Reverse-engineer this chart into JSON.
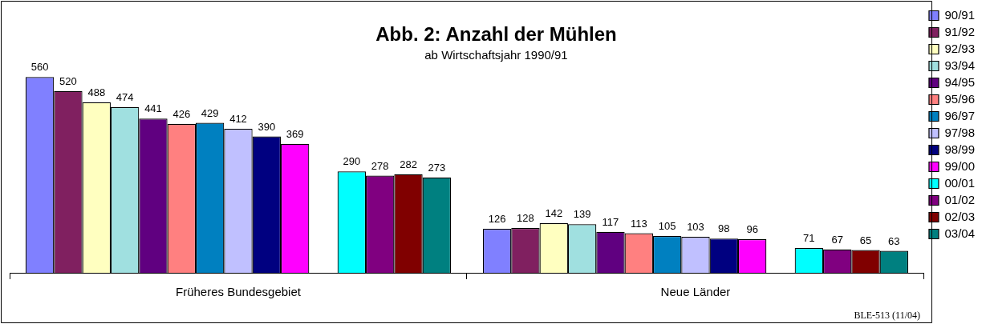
{
  "chart_data": {
    "type": "bar",
    "title": "Abb. 2: Anzahl der Mühlen",
    "subtitle": "ab Wirtschaftsjahr 1990/91",
    "categories": [
      "Früheres Bundesgebiet",
      "Neue Länder"
    ],
    "series": [
      {
        "name": "90/91",
        "color": "#8080ff",
        "values": [
          560,
          126
        ]
      },
      {
        "name": "91/92",
        "color": "#802060",
        "values": [
          520,
          128
        ]
      },
      {
        "name": "92/93",
        "color": "#ffffc0",
        "values": [
          488,
          142
        ]
      },
      {
        "name": "93/94",
        "color": "#a0e0e0",
        "values": [
          474,
          139
        ]
      },
      {
        "name": "94/95",
        "color": "#600080",
        "values": [
          441,
          117
        ]
      },
      {
        "name": "95/96",
        "color": "#ff8080",
        "values": [
          426,
          113
        ]
      },
      {
        "name": "96/97",
        "color": "#0080c0",
        "values": [
          429,
          105
        ]
      },
      {
        "name": "97/98",
        "color": "#c0c0ff",
        "values": [
          412,
          103
        ]
      },
      {
        "name": "98/99",
        "color": "#000080",
        "values": [
          390,
          98
        ]
      },
      {
        "name": "99/00",
        "color": "#ff00ff",
        "values": [
          369,
          96
        ]
      },
      {
        "name": "00/01",
        "color": "#00ffff",
        "values": [
          290,
          71
        ]
      },
      {
        "name": "01/02",
        "color": "#800080",
        "values": [
          278,
          67
        ]
      },
      {
        "name": "02/03",
        "color": "#800000",
        "values": [
          282,
          65
        ]
      },
      {
        "name": "03/04",
        "color": "#008080",
        "values": [
          273,
          63
        ]
      }
    ],
    "data_labels": true,
    "grid": false,
    "legend": "right",
    "annotations": [
      "BLE-513 (11/04)"
    ]
  }
}
